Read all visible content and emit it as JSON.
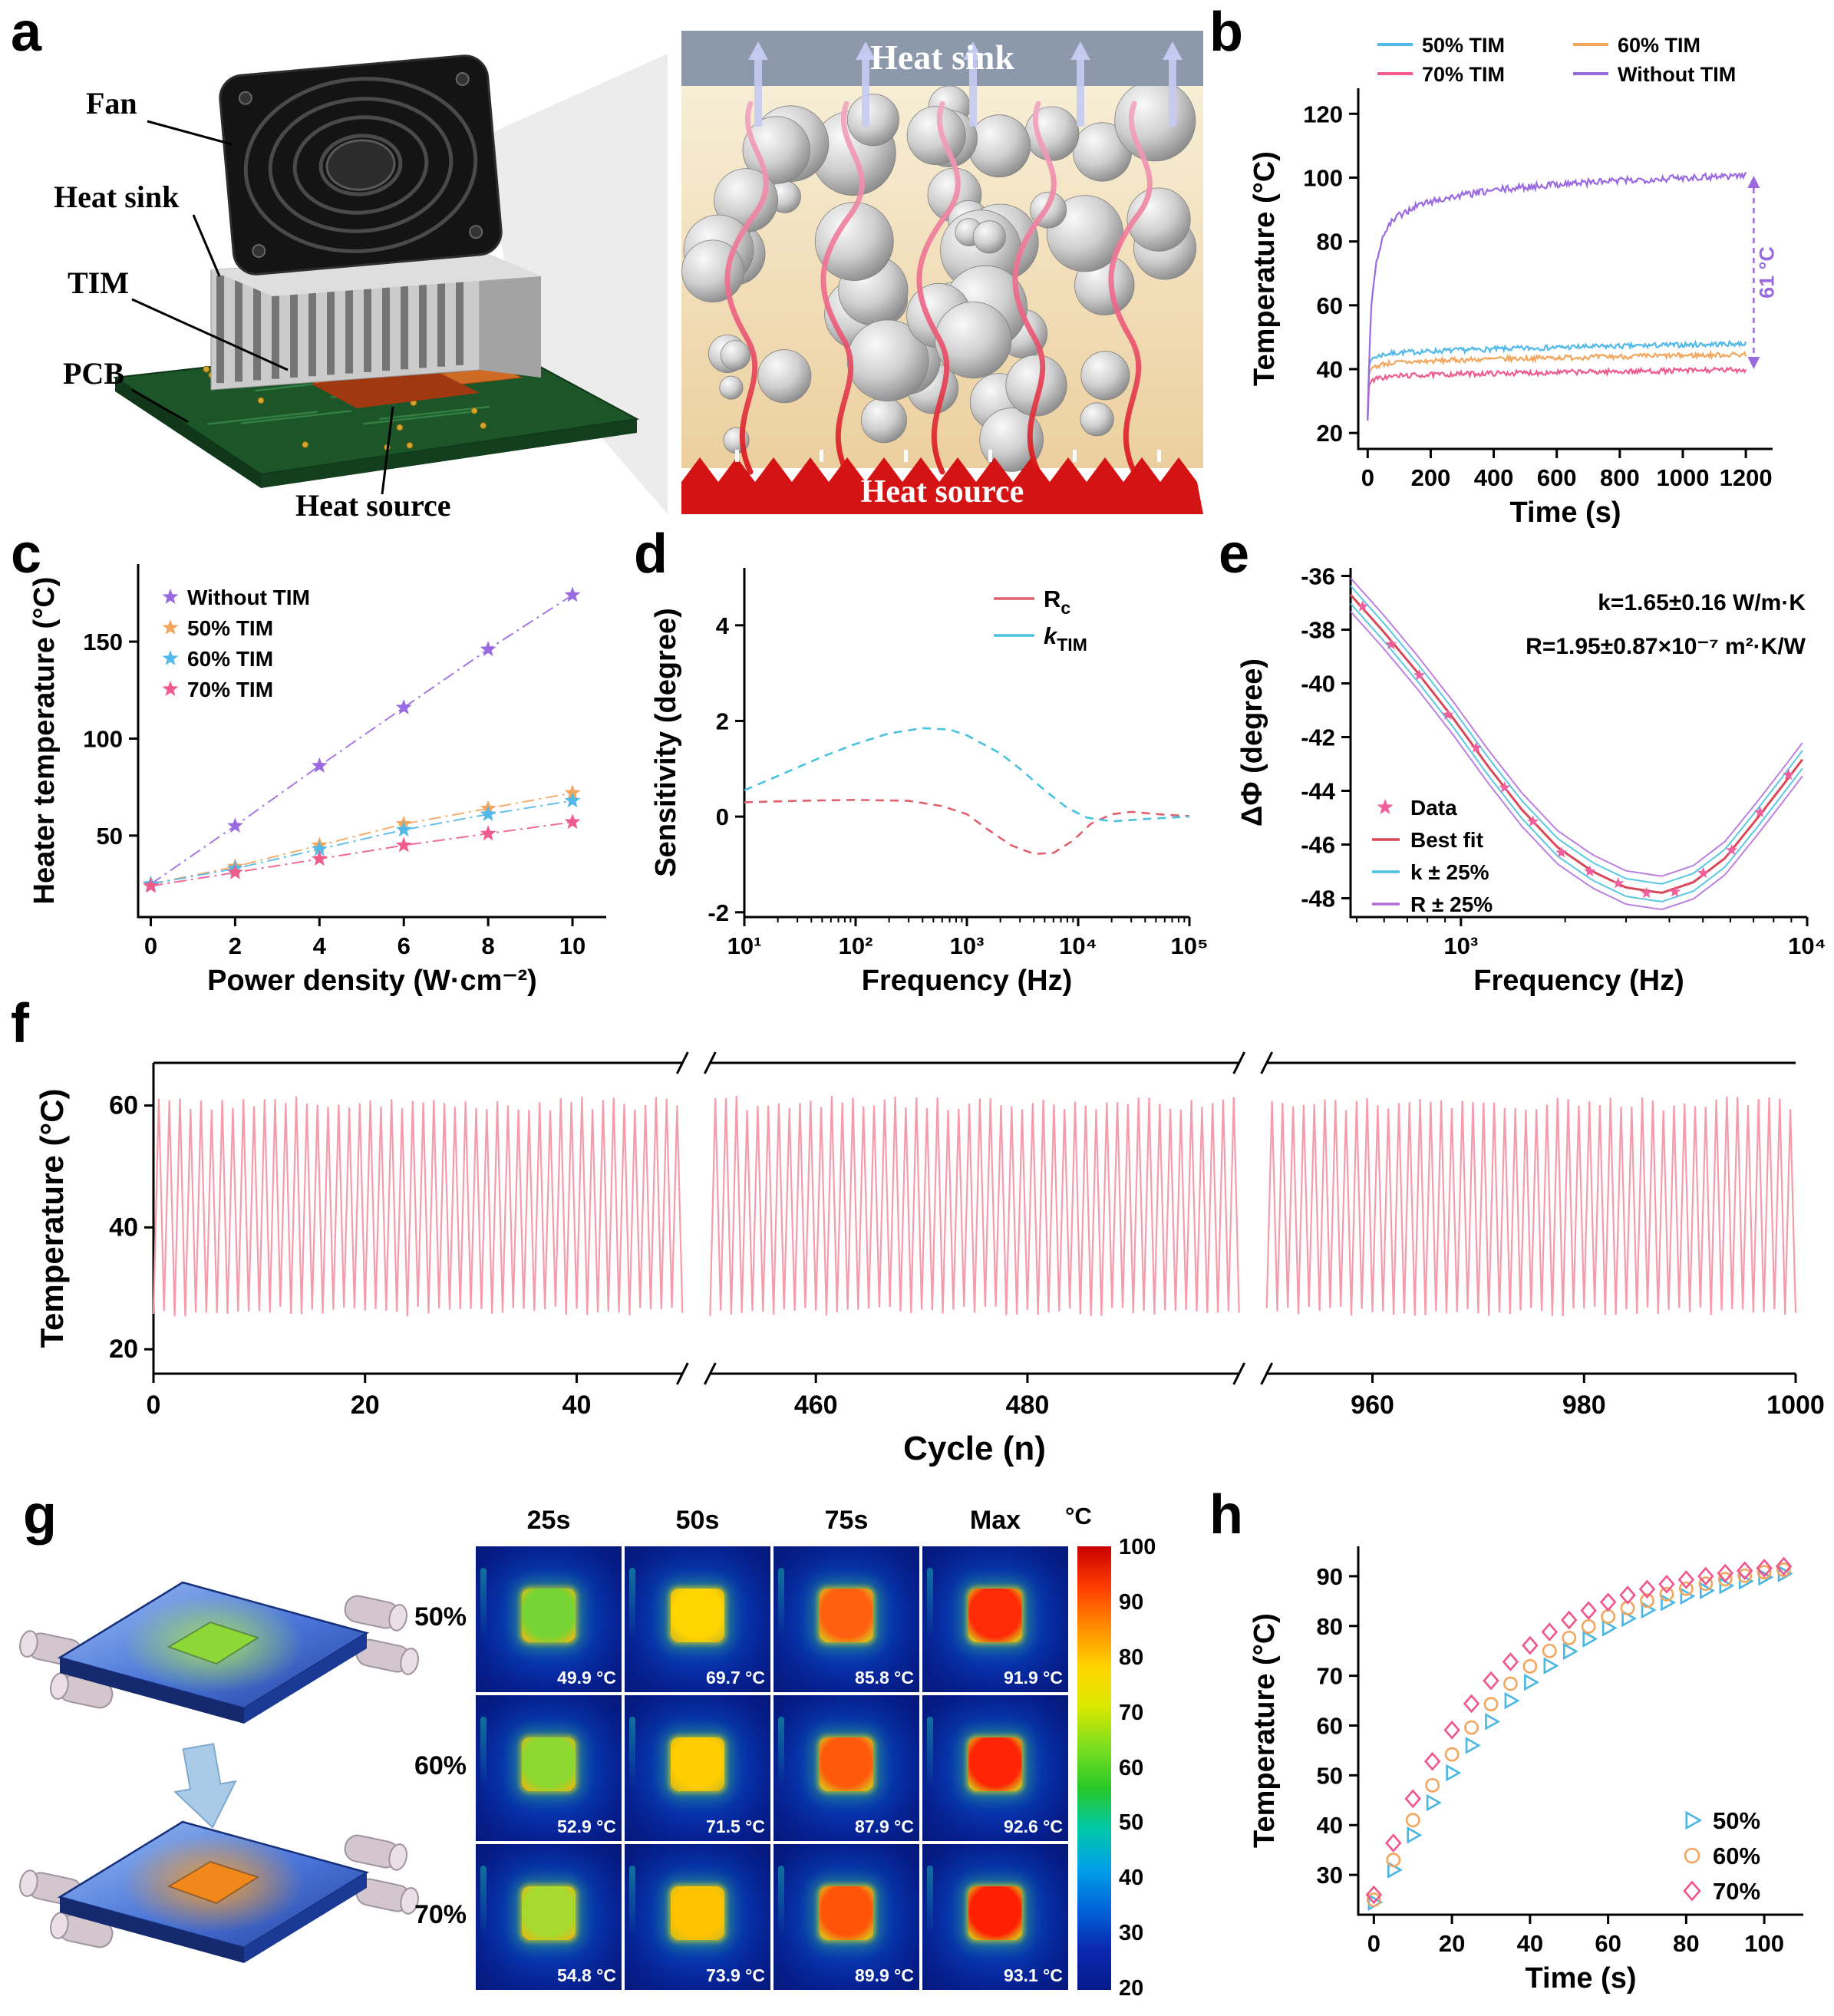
{
  "panels": {
    "a": "a",
    "b": "b",
    "c": "c",
    "d": "d",
    "e": "e",
    "f": "f",
    "g": "g",
    "h": "h"
  },
  "panel_a": {
    "labels": {
      "fan": "Fan",
      "heat_sink": "Heat sink",
      "tim": "TIM",
      "pcb": "PCB",
      "heat_source": "Heat source"
    },
    "zoom_top": "Heat sink",
    "zoom_bottom": "Heat source"
  },
  "chart_data": [
    {
      "id": "b",
      "type": "line",
      "xlabel": "Time (s)",
      "ylabel": "Temperature (°C)",
      "xlim": [
        -30,
        1285
      ],
      "xticks": [
        0,
        200,
        400,
        600,
        800,
        1000,
        1200
      ],
      "ylim": [
        15,
        128
      ],
      "yticks": [
        20,
        40,
        60,
        80,
        100,
        120
      ],
      "series": [
        {
          "name": "50% TIM",
          "color": "#53b9e8",
          "noise": 1.6,
          "points": [
            [
              0,
              26
            ],
            [
              4,
              41
            ],
            [
              15,
              43.5
            ],
            [
              50,
              44.6
            ],
            [
              100,
              45.2
            ],
            [
              300,
              46
            ],
            [
              600,
              46.8
            ],
            [
              900,
              47.4
            ],
            [
              1200,
              48
            ]
          ]
        },
        {
          "name": "60% TIM",
          "color": "#f2a65e",
          "noise": 1.6,
          "points": [
            [
              0,
              25
            ],
            [
              4,
              38.5
            ],
            [
              15,
              40.5
            ],
            [
              50,
              41.6
            ],
            [
              100,
              42.1
            ],
            [
              300,
              42.9
            ],
            [
              600,
              43.6
            ],
            [
              900,
              44.1
            ],
            [
              1200,
              44.6
            ]
          ]
        },
        {
          "name": "70% TIM",
          "color": "#ee5c8b",
          "noise": 1.6,
          "points": [
            [
              0,
              24
            ],
            [
              4,
              35
            ],
            [
              15,
              36.6
            ],
            [
              50,
              37.4
            ],
            [
              100,
              37.9
            ],
            [
              300,
              38.5
            ],
            [
              600,
              39
            ],
            [
              900,
              39.4
            ],
            [
              1200,
              39.8
            ]
          ]
        },
        {
          "name": "Without TIM",
          "color": "#9a6ae0",
          "noise": 2.2,
          "points": [
            [
              0,
              24
            ],
            [
              6,
              48
            ],
            [
              12,
              60
            ],
            [
              20,
              68
            ],
            [
              30,
              75
            ],
            [
              45,
              80
            ],
            [
              60,
              84
            ],
            [
              80,
              86.5
            ],
            [
              100,
              88
            ],
            [
              150,
              91
            ],
            [
              200,
              92.5
            ],
            [
              300,
              94.5
            ],
            [
              400,
              96
            ],
            [
              500,
              97
            ],
            [
              600,
              98
            ],
            [
              800,
              99
            ],
            [
              1000,
              100
            ],
            [
              1200,
              100.8
            ]
          ]
        }
      ],
      "legend_rows": [
        [
          "50% TIM",
          "60% TIM"
        ],
        [
          "70% TIM",
          "Without TIM"
        ]
      ],
      "annotation": "61 °C",
      "annotation_color": "#9a6ae0"
    },
    {
      "id": "c",
      "type": "scatter",
      "xlabel": "Power density (W·cm⁻²)",
      "ylabel": "Heater temperature (°C)",
      "xlim": [
        -0.3,
        10.8
      ],
      "xticks": [
        0,
        2,
        4,
        6,
        8,
        10
      ],
      "ylim": [
        8,
        190
      ],
      "yticks": [
        50,
        100,
        150
      ],
      "series": [
        {
          "name": "Without TIM",
          "color": "#9a6ae0",
          "x": [
            0,
            2,
            4,
            6,
            8,
            10
          ],
          "y": [
            25,
            55,
            86,
            116,
            146,
            174
          ]
        },
        {
          "name": "50% TIM",
          "color": "#f2a65e",
          "x": [
            0,
            2,
            4,
            6,
            8,
            10
          ],
          "y": [
            25,
            34,
            45,
            56,
            64,
            72
          ]
        },
        {
          "name": "60% TIM",
          "color": "#53b9e8",
          "x": [
            0,
            2,
            4,
            6,
            8,
            10
          ],
          "y": [
            25,
            33,
            43,
            53,
            61,
            68
          ]
        },
        {
          "name": "70% TIM",
          "color": "#ee5c8b",
          "x": [
            0,
            2,
            4,
            6,
            8,
            10
          ],
          "y": [
            24,
            31,
            38,
            45,
            51,
            57
          ]
        }
      ]
    },
    {
      "id": "d",
      "type": "line",
      "xlabel": "Frequency (Hz)",
      "ylabel": "Sensitivity (degree)",
      "xscale": "log",
      "xlim": [
        10,
        100000
      ],
      "xticklabels": [
        "10¹",
        "10²",
        "10³",
        "10⁴",
        "10⁵"
      ],
      "ylim": [
        -2.1,
        5.2
      ],
      "yticks": [
        -2,
        0,
        2,
        4
      ],
      "series": [
        {
          "name": "Rc",
          "label_main": "R",
          "label_sub": "c",
          "italic": false,
          "color": "#e0606e",
          "points": [
            [
              10,
              0.3
            ],
            [
              30,
              0.33
            ],
            [
              100,
              0.35
            ],
            [
              300,
              0.33
            ],
            [
              600,
              0.22
            ],
            [
              1000,
              0.05
            ],
            [
              1500,
              -0.25
            ],
            [
              2500,
              -0.6
            ],
            [
              4000,
              -0.78
            ],
            [
              6000,
              -0.76
            ],
            [
              9000,
              -0.5
            ],
            [
              13000,
              -0.15
            ],
            [
              20000,
              0.05
            ],
            [
              30000,
              0.1
            ],
            [
              60000,
              0.04
            ],
            [
              100000,
              0.01
            ]
          ]
        },
        {
          "name": "kTIM",
          "label_main": "k",
          "label_sub": "TIM",
          "italic": true,
          "color": "#49c2e0",
          "points": [
            [
              10,
              0.55
            ],
            [
              20,
              0.85
            ],
            [
              50,
              1.25
            ],
            [
              100,
              1.52
            ],
            [
              200,
              1.74
            ],
            [
              400,
              1.85
            ],
            [
              700,
              1.82
            ],
            [
              1000,
              1.7
            ],
            [
              2000,
              1.32
            ],
            [
              3000,
              1.0
            ],
            [
              5000,
              0.55
            ],
            [
              8000,
              0.18
            ],
            [
              12000,
              -0.02
            ],
            [
              20000,
              -0.1
            ],
            [
              40000,
              -0.05
            ],
            [
              100000,
              0
            ]
          ]
        }
      ]
    },
    {
      "id": "e",
      "type": "line",
      "xlabel": "Frequency (Hz)",
      "ylabel": "ΔΦ (degree)",
      "xscale": "log",
      "xlim": [
        480,
        10000
      ],
      "xtick_majors": [
        1000,
        10000
      ],
      "xticklabels": [
        "10³",
        "10⁴"
      ],
      "ylim": [
        -48.7,
        -35.7
      ],
      "yticks": [
        -36,
        -38,
        -40,
        -42,
        -44,
        -46,
        -48
      ],
      "annotations": [
        "k=1.65±0.16 W/m·K",
        "R=1.95±0.87×10⁻⁷ m²·K/W"
      ],
      "bestfit": [
        [
          480,
          -36.7
        ],
        [
          600,
          -38.1
        ],
        [
          750,
          -39.6
        ],
        [
          950,
          -41.3
        ],
        [
          1200,
          -43.1
        ],
        [
          1500,
          -44.7
        ],
        [
          1900,
          -46.1
        ],
        [
          2400,
          -47.0
        ],
        [
          3000,
          -47.6
        ],
        [
          3800,
          -47.8
        ],
        [
          4700,
          -47.4
        ],
        [
          5800,
          -46.5
        ],
        [
          7200,
          -45.0
        ],
        [
          8500,
          -43.8
        ],
        [
          10000,
          -42.6
        ]
      ],
      "legend": [
        {
          "label": "Data",
          "color": "#f0609e",
          "type": "star"
        },
        {
          "label": "Best fit",
          "color": "#d84858",
          "type": "line"
        },
        {
          "label": "k ± 25%",
          "color": "#49c2e0",
          "type": "line"
        },
        {
          "label": "R ± 25%",
          "color": "#b06ad8",
          "type": "line"
        }
      ],
      "data_color": "#f0609e",
      "fit_color": "#d84858",
      "k_color": "#49c2e0",
      "r_color": "#b06ad8"
    },
    {
      "id": "f",
      "type": "line",
      "xlabel": "Cycle (n)",
      "ylabel": "Temperature (°C)",
      "ylim": [
        16,
        67
      ],
      "yticks": [
        20,
        40,
        60
      ],
      "segments": [
        {
          "range": [
            0,
            50
          ],
          "ticks": [
            0,
            20,
            40
          ]
        },
        {
          "range": [
            450,
            500
          ],
          "ticks": [
            460,
            480
          ]
        },
        {
          "range": [
            950,
            1000
          ],
          "ticks": [
            960,
            980,
            1000
          ]
        }
      ],
      "wave": {
        "min": 26,
        "max": 61
      },
      "color": "#f59cab"
    },
    {
      "id": "h",
      "type": "scatter",
      "xlabel": "Time (s)",
      "ylabel": "Temperature (°C)",
      "xlim": [
        -4,
        110
      ],
      "xticks": [
        0,
        20,
        40,
        60,
        80,
        100
      ],
      "ylim": [
        22,
        96
      ],
      "yticks": [
        30,
        40,
        50,
        60,
        70,
        80,
        90
      ],
      "x": [
        0,
        5,
        10,
        15,
        20,
        25,
        30,
        35,
        40,
        45,
        50,
        55,
        60,
        65,
        70,
        75,
        80,
        85,
        90,
        95,
        100,
        105
      ],
      "series": [
        {
          "name": "50%",
          "marker": "triangle",
          "color": "#4ab6e2",
          "y": [
            24.5,
            31,
            38,
            44.5,
            50.5,
            56,
            60.8,
            65,
            68.7,
            72,
            74.9,
            77.4,
            79.6,
            81.5,
            83.2,
            84.7,
            86,
            87.1,
            88.1,
            89,
            89.8,
            90.5
          ]
        },
        {
          "name": "60%",
          "marker": "circle",
          "color": "#f2a65e",
          "y": [
            25,
            33,
            41,
            48,
            54.2,
            59.6,
            64.3,
            68.4,
            71.9,
            75,
            77.6,
            79.9,
            81.9,
            83.6,
            85.1,
            86.4,
            87.5,
            88.5,
            89.4,
            90.1,
            90.8,
            91.3
          ]
        },
        {
          "name": "70%",
          "marker": "diamond",
          "color": "#f0558c",
          "y": [
            26,
            36.4,
            45.3,
            52.8,
            59.1,
            64.4,
            69,
            72.8,
            76.1,
            78.8,
            81.2,
            83.1,
            84.8,
            86.2,
            87.4,
            88.4,
            89.3,
            90,
            90.6,
            91.1,
            91.6,
            92
          ]
        }
      ]
    }
  ],
  "panel_g": {
    "col_headers": [
      "25s",
      "50s",
      "75s",
      "Max"
    ],
    "rows": [
      {
        "label": "50%",
        "values": [
          "49.9 °C",
          "69.7 °C",
          "85.8 °C",
          "91.9 °C"
        ],
        "chip_colors": [
          "#76d434",
          "#ffd400",
          "#ff6010",
          "#ff2a06"
        ]
      },
      {
        "label": "60%",
        "values": [
          "52.9 °C",
          "71.5 °C",
          "87.9 °C",
          "92.6 °C"
        ],
        "chip_colors": [
          "#8cd830",
          "#ffcd00",
          "#ff5a0c",
          "#ff2405"
        ]
      },
      {
        "label": "70%",
        "values": [
          "54.8 °C",
          "73.9 °C",
          "89.9 °C",
          "93.1 °C"
        ],
        "chip_colors": [
          "#a6da2e",
          "#ffc300",
          "#ff540a",
          "#ff2004"
        ]
      }
    ],
    "colorbar": {
      "unit": "°C",
      "ticks": [
        100,
        90,
        80,
        70,
        60,
        50,
        40,
        30,
        20
      ],
      "gradient": [
        "#c80000",
        "#ff3c00",
        "#ff8c00",
        "#ffd500",
        "#d8e800",
        "#7bde20",
        "#28c828",
        "#00c8a8",
        "#00a0e8",
        "#0064d8",
        "#0a28b0",
        "#061c8c"
      ]
    },
    "schematic": {
      "top_chip": "#8cd838",
      "bottom_chip": "#f0881c",
      "plate": "#2e55c8",
      "arrow": "#a9cbe8"
    }
  }
}
